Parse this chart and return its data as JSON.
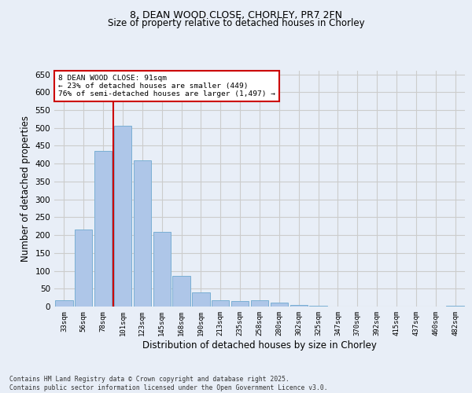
{
  "title_line1": "8, DEAN WOOD CLOSE, CHORLEY, PR7 2FN",
  "title_line2": "Size of property relative to detached houses in Chorley",
  "xlabel": "Distribution of detached houses by size in Chorley",
  "ylabel": "Number of detached properties",
  "footer_line1": "Contains HM Land Registry data © Crown copyright and database right 2025.",
  "footer_line2": "Contains public sector information licensed under the Open Government Licence v3.0.",
  "categories": [
    "33sqm",
    "56sqm",
    "78sqm",
    "101sqm",
    "123sqm",
    "145sqm",
    "168sqm",
    "190sqm",
    "213sqm",
    "235sqm",
    "258sqm",
    "280sqm",
    "302sqm",
    "325sqm",
    "347sqm",
    "370sqm",
    "392sqm",
    "415sqm",
    "437sqm",
    "460sqm",
    "482sqm"
  ],
  "values": [
    18,
    215,
    435,
    505,
    410,
    210,
    85,
    40,
    18,
    15,
    17,
    12,
    5,
    2,
    0,
    0,
    0,
    0,
    0,
    0,
    2
  ],
  "bar_color": "#aec6e8",
  "bar_edge_color": "#7aafd4",
  "vline_x_index": 2.5,
  "vline_color": "#cc0000",
  "annotation_text": "8 DEAN WOOD CLOSE: 91sqm\n← 23% of detached houses are smaller (449)\n76% of semi-detached houses are larger (1,497) →",
  "annotation_box_color": "#cc0000",
  "ylim": [
    0,
    660
  ],
  "yticks": [
    0,
    50,
    100,
    150,
    200,
    250,
    300,
    350,
    400,
    450,
    500,
    550,
    600,
    650
  ],
  "grid_color": "#cccccc",
  "bg_color": "#e8eef7"
}
